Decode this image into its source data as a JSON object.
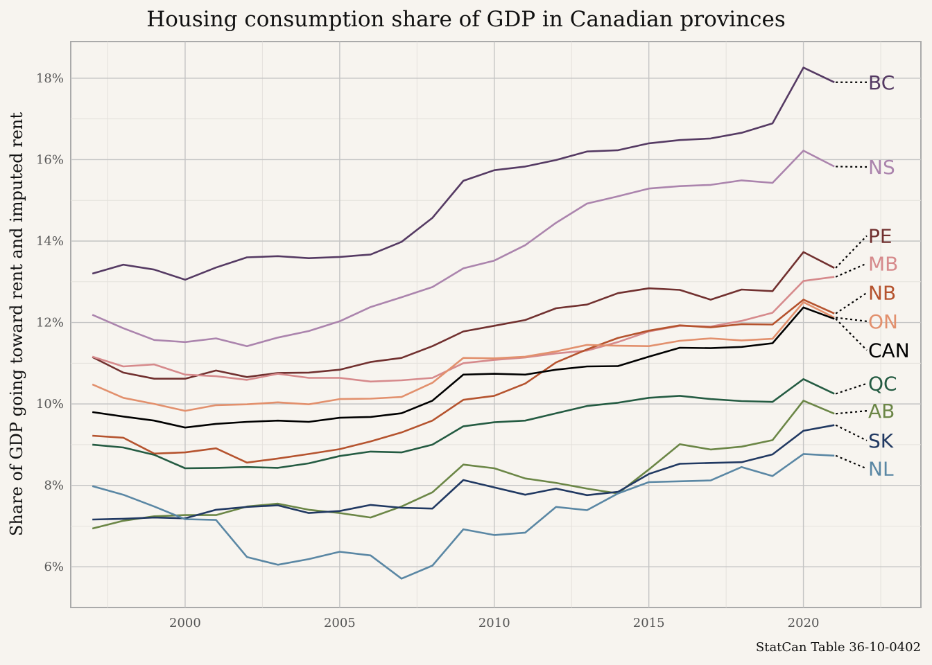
{
  "chart_data": {
    "type": "line",
    "title": "Housing consumption share of GDP in Canadian provinces",
    "xlabel": "",
    "ylabel": "Share of GDP going toward rent and imputed rent",
    "caption": "StatCan Table 36-10-0402",
    "xlim": [
      1996.3,
      2023.8
    ],
    "ylim": [
      5.0,
      18.9
    ],
    "xticks": [
      2000,
      2005,
      2010,
      2015,
      2020
    ],
    "xtick_labels": [
      "2000",
      "2005",
      "2010",
      "2015",
      "2020"
    ],
    "yticks": [
      6,
      8,
      10,
      12,
      14,
      16,
      18
    ],
    "ytick_labels": [
      "6%",
      "8%",
      "10%",
      "12%",
      "14%",
      "16%",
      "18%"
    ],
    "grid": true,
    "legend": "direct labels at right end of each line",
    "x": [
      1997,
      1998,
      1999,
      2000,
      2001,
      2002,
      2003,
      2004,
      2005,
      2006,
      2007,
      2008,
      2009,
      2010,
      2011,
      2012,
      2013,
      2014,
      2015,
      2016,
      2017,
      2018,
      2019,
      2020,
      2021
    ],
    "series": [
      {
        "name": "BC",
        "color": "#553a63",
        "label_y": 17.9,
        "values": [
          13.2,
          13.42,
          13.3,
          13.05,
          13.35,
          13.6,
          13.63,
          13.58,
          13.61,
          13.67,
          13.98,
          14.57,
          15.48,
          15.74,
          15.83,
          15.99,
          16.2,
          16.23,
          16.4,
          16.48,
          16.52,
          16.66,
          16.89,
          18.26,
          17.9
        ]
      },
      {
        "name": "NS",
        "color": "#ab84ad",
        "label_y": 15.82,
        "values": [
          12.19,
          11.86,
          11.57,
          11.52,
          11.61,
          11.42,
          11.63,
          11.79,
          12.03,
          12.38,
          12.62,
          12.87,
          13.33,
          13.52,
          13.9,
          14.45,
          14.92,
          15.1,
          15.29,
          15.35,
          15.38,
          15.49,
          15.43,
          16.22,
          15.83
        ]
      },
      {
        "name": "PE",
        "color": "#71302f",
        "label_y": 14.13,
        "values": [
          11.15,
          10.77,
          10.62,
          10.62,
          10.82,
          10.66,
          10.76,
          10.77,
          10.84,
          11.03,
          11.13,
          11.42,
          11.78,
          11.92,
          12.06,
          12.35,
          12.44,
          12.72,
          12.84,
          12.8,
          12.56,
          12.81,
          12.77,
          13.73,
          13.34
        ]
      },
      {
        "name": "MB",
        "color": "#d68a8c",
        "label_y": 13.45,
        "values": [
          11.16,
          10.92,
          10.97,
          10.72,
          10.68,
          10.59,
          10.74,
          10.64,
          10.64,
          10.55,
          10.58,
          10.64,
          11.0,
          11.08,
          11.14,
          11.24,
          11.31,
          11.52,
          11.78,
          11.92,
          11.9,
          12.04,
          12.24,
          13.02,
          13.12
        ]
      },
      {
        "name": "NB",
        "color": "#b5532e",
        "label_y": 12.73,
        "values": [
          9.22,
          9.17,
          8.78,
          8.81,
          8.91,
          8.56,
          8.66,
          8.77,
          8.89,
          9.08,
          9.3,
          9.59,
          10.1,
          10.2,
          10.5,
          11.02,
          11.34,
          11.62,
          11.8,
          11.93,
          11.88,
          11.96,
          11.95,
          12.56,
          12.22
        ]
      },
      {
        "name": "ON",
        "color": "#e2906d",
        "label_y": 12.03,
        "values": [
          10.48,
          10.15,
          10.0,
          9.83,
          9.97,
          9.99,
          10.04,
          9.99,
          10.12,
          10.13,
          10.17,
          10.52,
          11.13,
          11.12,
          11.16,
          11.29,
          11.45,
          11.43,
          11.42,
          11.55,
          11.61,
          11.56,
          11.6,
          12.5,
          12.12
        ]
      },
      {
        "name": "CAN",
        "color": "#000000",
        "label_y": 11.32,
        "values": [
          9.8,
          9.69,
          9.59,
          9.42,
          9.51,
          9.56,
          9.59,
          9.56,
          9.66,
          9.68,
          9.77,
          10.08,
          10.72,
          10.74,
          10.72,
          10.84,
          10.92,
          10.93,
          11.16,
          11.38,
          11.37,
          11.4,
          11.49,
          12.37,
          12.09
        ]
      },
      {
        "name": "QC",
        "color": "#245b42",
        "label_y": 10.5,
        "values": [
          9.0,
          8.93,
          8.75,
          8.42,
          8.43,
          8.45,
          8.43,
          8.54,
          8.72,
          8.83,
          8.81,
          9.0,
          9.45,
          9.55,
          9.59,
          9.77,
          9.95,
          10.03,
          10.15,
          10.2,
          10.12,
          10.07,
          10.05,
          10.61,
          10.25
        ]
      },
      {
        "name": "AB",
        "color": "#6b8646",
        "label_y": 9.83,
        "values": [
          6.94,
          7.13,
          7.24,
          7.27,
          7.27,
          7.48,
          7.55,
          7.4,
          7.32,
          7.21,
          7.48,
          7.83,
          8.51,
          8.42,
          8.17,
          8.06,
          7.92,
          7.8,
          8.39,
          9.01,
          8.88,
          8.95,
          9.11,
          10.08,
          9.76
        ]
      },
      {
        "name": "SK",
        "color": "#213962",
        "label_y": 9.1,
        "values": [
          7.16,
          7.18,
          7.21,
          7.19,
          7.4,
          7.47,
          7.51,
          7.32,
          7.37,
          7.52,
          7.45,
          7.43,
          8.13,
          7.95,
          7.77,
          7.92,
          7.76,
          7.84,
          8.28,
          8.53,
          8.55,
          8.57,
          8.76,
          9.34,
          9.48
        ]
      },
      {
        "name": "NL",
        "color": "#5a87a4",
        "label_y": 8.41,
        "values": [
          7.98,
          7.77,
          7.48,
          7.17,
          7.15,
          6.24,
          6.05,
          6.19,
          6.37,
          6.28,
          5.71,
          6.03,
          6.92,
          6.78,
          6.84,
          7.47,
          7.39,
          7.8,
          8.08,
          8.1,
          8.12,
          8.45,
          8.23,
          8.77,
          8.73
        ]
      }
    ]
  }
}
